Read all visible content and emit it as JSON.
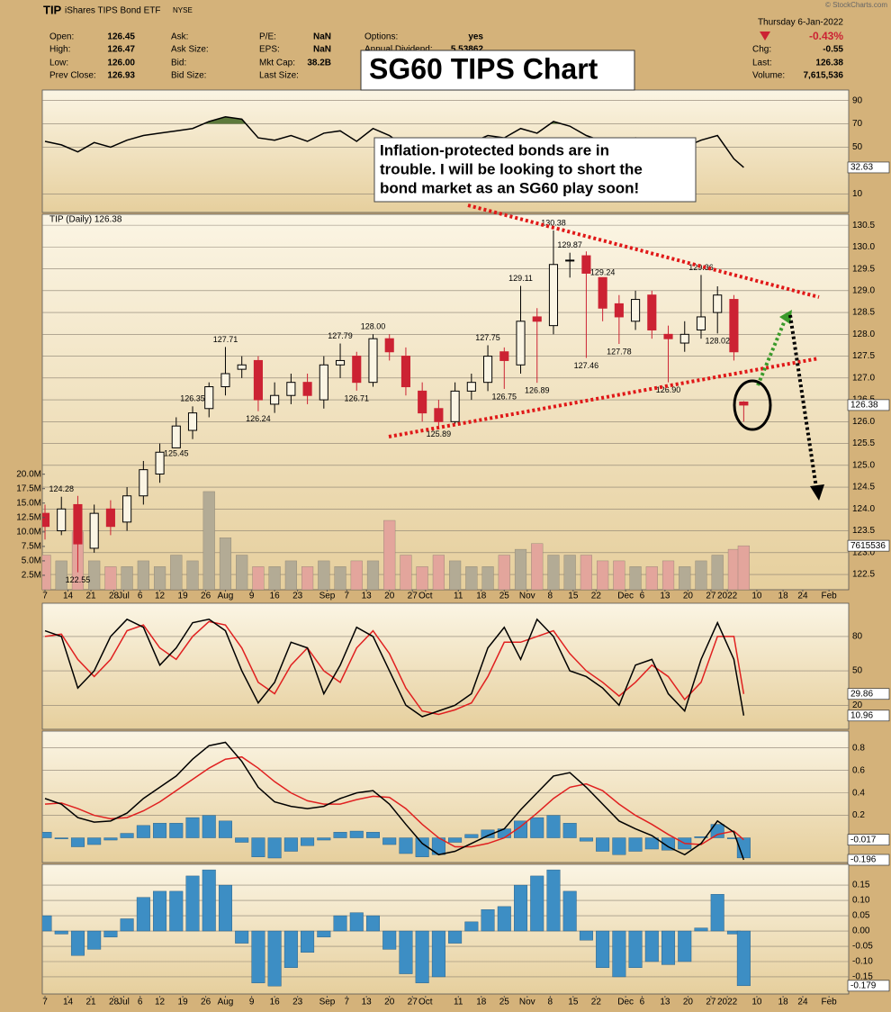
{
  "header": {
    "symbol": "TIP",
    "name": "iShares TIPS Bond ETF",
    "exchange": "NYSE",
    "watermark": "© StockCharts.com",
    "date": "Thursday  6-Jan-2022",
    "change_pct": "-0.43%",
    "columns": [
      [
        {
          "label": "Open:",
          "value": "126.45"
        },
        {
          "label": "High:",
          "value": "126.47"
        },
        {
          "label": "Low:",
          "value": "126.00"
        },
        {
          "label": "Prev Close:",
          "value": "126.93"
        }
      ],
      [
        {
          "label": "Ask:"
        },
        {
          "label": "Ask Size:"
        },
        {
          "label": "Bid:"
        },
        {
          "label": "Bid Size:"
        }
      ],
      [
        {
          "label": "P/E:",
          "value": "NaN"
        },
        {
          "label": "EPS:",
          "value": "NaN"
        },
        {
          "label": "Mkt Cap:",
          "value": "38.2B"
        },
        {
          "label": "Last Size:"
        }
      ],
      [
        {
          "label": "Options:",
          "value": "yes"
        },
        {
          "label": "Annual Dividend:",
          "value": "5.53862"
        }
      ]
    ],
    "right_fields": [
      {
        "label": "Chg:",
        "value": "-0.55"
      },
      {
        "label": "Last:",
        "value": "126.38"
      },
      {
        "label": "Volume:",
        "value": "7,615,536"
      }
    ],
    "title": "SG60 TIPS Chart",
    "note": [
      " Inflation-protected bonds are in",
      "trouble.  I will be looking to short the",
      "bond market as an SG60 play soon!"
    ]
  },
  "chart_data": {
    "type": "candlestick",
    "x": [
      0,
      5,
      10,
      15,
      20,
      25,
      30,
      35,
      40,
      45,
      50,
      55,
      60,
      65,
      70,
      75,
      80,
      85,
      90,
      95,
      100,
      105,
      110,
      115,
      120,
      125,
      130,
      135,
      140,
      145,
      150,
      155,
      160,
      165,
      170,
      175,
      180,
      185,
      190,
      195,
      200,
      205,
      210,
      213
    ],
    "xlim": [
      0,
      245
    ],
    "xticks": [
      {
        "value": 0,
        "label": "7"
      },
      {
        "value": 7,
        "label": "14"
      },
      {
        "value": 14,
        "label": "21"
      },
      {
        "value": 21,
        "label": "28"
      },
      {
        "value": 24,
        "label": "Jul"
      },
      {
        "value": 29,
        "label": "6"
      },
      {
        "value": 35,
        "label": "12"
      },
      {
        "value": 42,
        "label": "19"
      },
      {
        "value": 49,
        "label": "26"
      },
      {
        "value": 55,
        "label": "Aug"
      },
      {
        "value": 63,
        "label": "9"
      },
      {
        "value": 70,
        "label": "16"
      },
      {
        "value": 77,
        "label": "23"
      },
      {
        "value": 86,
        "label": "Sep"
      },
      {
        "value": 92,
        "label": "7"
      },
      {
        "value": 98,
        "label": "13"
      },
      {
        "value": 105,
        "label": "20"
      },
      {
        "value": 112,
        "label": "27"
      },
      {
        "value": 116,
        "label": "Oct"
      },
      {
        "value": 126,
        "label": "11"
      },
      {
        "value": 133,
        "label": "18"
      },
      {
        "value": 140,
        "label": "25"
      },
      {
        "value": 147,
        "label": "Nov"
      },
      {
        "value": 154,
        "label": "8"
      },
      {
        "value": 161,
        "label": "15"
      },
      {
        "value": 168,
        "label": "22"
      },
      {
        "value": 177,
        "label": "Dec"
      },
      {
        "value": 182,
        "label": "6"
      },
      {
        "value": 189,
        "label": "13"
      },
      {
        "value": 196,
        "label": "20"
      },
      {
        "value": 203,
        "label": "27"
      },
      {
        "value": 208,
        "label": "2022"
      },
      {
        "value": 217,
        "label": "10"
      },
      {
        "value": 225,
        "label": "18"
      },
      {
        "value": 231,
        "label": "24"
      },
      {
        "value": 239,
        "label": "Feb"
      }
    ],
    "panels": [
      {
        "type": "line",
        "ylim": [
          -6,
          99
        ],
        "yticks": [
          90,
          70,
          50,
          10
        ],
        "fill_above": 70,
        "fill_color": "#5d7a3c",
        "series": [
          {
            "color": "#000000",
            "values": [
              55,
              52,
              46,
              54,
              50,
              56,
              60,
              62,
              64,
              66,
              72,
              76,
              74,
              58,
              56,
              60,
              55,
              62,
              64,
              55,
              66,
              60,
              50,
              45,
              44,
              52,
              54,
              60,
              58,
              66,
              62,
              72,
              68,
              60,
              55,
              52,
              58,
              50,
              47,
              50,
              56,
              60,
              40,
              32.63
            ]
          }
        ]
      },
      {
        "type": "candlestick",
        "label": "TIP (Daily) 126.38",
        "up_color": "#000000",
        "down_color": "#cc2233",
        "ylim": [
          122.15,
          130.75
        ],
        "yticks": [
          130.5,
          {
            "value": 130,
            "label": "130.0"
          },
          129.5,
          {
            "value": 129,
            "label": "129.0"
          },
          128.5,
          {
            "value": 128,
            "label": "128.0"
          },
          127.5,
          {
            "value": 127,
            "label": "127.0"
          },
          126.5,
          {
            "value": 126,
            "label": "126.0"
          },
          125.5,
          {
            "value": 125,
            "label": "125.0"
          },
          124.5,
          {
            "value": 124,
            "label": "124.0"
          },
          123.5,
          {
            "value": 123,
            "label": "123.0"
          },
          122.5
        ],
        "open": [
          123.9,
          123.5,
          124.1,
          123.1,
          124.0,
          123.7,
          124.3,
          124.8,
          125.4,
          125.8,
          126.3,
          126.8,
          127.2,
          127.4,
          126.4,
          126.6,
          126.9,
          126.5,
          127.3,
          127.5,
          126.9,
          127.9,
          127.5,
          126.7,
          126.3,
          126.0,
          126.7,
          126.9,
          127.6,
          127.3,
          128.4,
          128.2,
          129.7,
          129.8,
          129.3,
          128.7,
          128.3,
          128.9,
          128.0,
          127.8,
          128.1,
          128.5,
          128.8,
          126.45
        ],
        "high": [
          124.1,
          124.28,
          124.3,
          124.1,
          124.2,
          124.5,
          125.1,
          125.5,
          126.1,
          126.35,
          126.9,
          127.71,
          127.5,
          127.5,
          126.9,
          127.1,
          127.1,
          127.5,
          127.79,
          127.6,
          128.0,
          128.0,
          127.7,
          126.9,
          126.5,
          126.9,
          127.1,
          127.75,
          127.7,
          129.11,
          128.6,
          130.38,
          129.87,
          129.9,
          129.24,
          128.9,
          129.0,
          129.0,
          128.2,
          128.3,
          129.36,
          129.1,
          128.9,
          126.47
        ],
        "low": [
          123.3,
          123.4,
          122.55,
          123.0,
          123.4,
          123.5,
          124.1,
          124.6,
          125.45,
          125.6,
          126.1,
          126.6,
          127.0,
          126.24,
          126.2,
          126.4,
          126.4,
          126.3,
          127.0,
          126.71,
          126.8,
          127.4,
          126.6,
          126.0,
          125.89,
          125.95,
          126.5,
          126.7,
          126.75,
          127.1,
          126.89,
          128.0,
          129.3,
          127.46,
          128.3,
          127.78,
          128.1,
          127.9,
          126.9,
          127.6,
          127.9,
          128.02,
          127.4,
          126.0
        ],
        "close": [
          123.6,
          124.0,
          123.2,
          123.9,
          123.6,
          124.3,
          124.9,
          125.3,
          125.9,
          126.2,
          126.8,
          127.1,
          127.3,
          126.5,
          126.6,
          126.9,
          126.6,
          127.3,
          127.4,
          126.9,
          127.9,
          127.6,
          126.8,
          126.2,
          126.0,
          126.7,
          126.9,
          127.5,
          127.4,
          128.3,
          128.3,
          129.6,
          129.7,
          129.4,
          128.6,
          128.4,
          128.8,
          128.1,
          127.9,
          128.0,
          128.4,
          128.9,
          127.6,
          126.38
        ],
        "volume": {
          "colors": [
            "#b3ab95",
            "#e3a59c"
          ],
          "values": [
            6000000,
            5000000,
            10000000,
            5000000,
            4000000,
            4000000,
            5000000,
            4000000,
            6000000,
            5000000,
            17000000,
            9000000,
            6000000,
            4000000,
            4000000,
            5000000,
            4000000,
            5000000,
            4000000,
            5000000,
            5000000,
            12000000,
            6000000,
            4000000,
            6000000,
            5000000,
            4000000,
            4000000,
            6000000,
            7000000,
            8000000,
            6000000,
            6000000,
            6000000,
            5000000,
            5000000,
            4000000,
            4000000,
            5000000,
            4000000,
            5000000,
            6000000,
            7000000,
            7615536
          ]
        },
        "y2lim": [
          0,
          65000000
        ],
        "y2ticks": [
          {
            "value": 20000000,
            "label": "20.0M"
          },
          {
            "value": 17500000,
            "label": "17.5M"
          },
          {
            "value": 15000000,
            "label": "15.0M"
          },
          {
            "value": 12500000,
            "label": "12.5M"
          },
          {
            "value": 10000000,
            "label": "10.0M"
          },
          {
            "value": 7500000,
            "label": "7.5M"
          },
          {
            "value": 5000000,
            "label": "5.0M"
          },
          {
            "value": 2500000,
            "label": "2.5M"
          }
        ],
        "annotations": [
          {
            "x": 5,
            "value": 124.28,
            "label": "124.28"
          },
          {
            "x": 10,
            "value": 122.55,
            "label": "122.55"
          },
          {
            "x": 45,
            "value": 126.35,
            "label": "126.35"
          },
          {
            "x": 40,
            "value": 125.45,
            "label": "125.45"
          },
          {
            "x": 55,
            "value": 127.71,
            "label": "127.71"
          },
          {
            "x": 65,
            "value": 126.24,
            "label": "126.24"
          },
          {
            "x": 90,
            "value": 127.79,
            "label": "127.79"
          },
          {
            "x": 95,
            "value": 126.71,
            "label": "126.71"
          },
          {
            "x": 100,
            "value": 128,
            "label": "128.00"
          },
          {
            "x": 120,
            "value": 125.89,
            "label": "125.89"
          },
          {
            "x": 135,
            "value": 127.75,
            "label": "127.75"
          },
          {
            "x": 140,
            "value": 126.75,
            "label": "126.75"
          },
          {
            "x": 145,
            "value": 129.11,
            "label": "129.11"
          },
          {
            "x": 150,
            "value": 126.89,
            "label": "126.89"
          },
          {
            "x": 155,
            "value": 130.38,
            "label": "130.38"
          },
          {
            "x": 160,
            "value": 129.87,
            "label": "129.87"
          },
          {
            "x": 170,
            "value": 129.24,
            "label": "129.24"
          },
          {
            "x": 165,
            "value": 127.46,
            "label": "127.46"
          },
          {
            "x": 175,
            "value": 127.78,
            "label": "127.78"
          },
          {
            "x": 200,
            "value": 129.36,
            "label": "129.36"
          },
          {
            "x": 205,
            "value": 128.02,
            "label": "128.02"
          },
          {
            "x": 190,
            "value": 126.9,
            "label": "126.90"
          }
        ]
      },
      {
        "type": "line",
        "ylim": [
          -1,
          109
        ],
        "yticks": [
          80,
          50,
          20
        ],
        "series": [
          {
            "color": "#000000",
            "values": [
              85,
              80,
              35,
              50,
              80,
              95,
              88,
              55,
              70,
              92,
              95,
              85,
              50,
              22,
              40,
              75,
              70,
              30,
              55,
              88,
              80,
              50,
              20,
              10,
              15,
              20,
              30,
              70,
              88,
              60,
              95,
              80,
              50,
              45,
              35,
              20,
              55,
              60,
              30,
              15,
              60,
              92,
              60,
              10.96
            ]
          },
          {
            "color": "#e02020",
            "values": [
              80,
              82,
              60,
              45,
              60,
              85,
              90,
              70,
              60,
              80,
              93,
              90,
              70,
              40,
              30,
              55,
              70,
              50,
              40,
              70,
              85,
              65,
              35,
              15,
              12,
              16,
              22,
              45,
              75,
              75,
              80,
              85,
              65,
              50,
              40,
              28,
              40,
              55,
              45,
              25,
              40,
              80,
              80,
              29.86
            ]
          }
        ]
      },
      {
        "type": "macd",
        "ylim": [
          -0.22,
          0.95
        ],
        "yticks": [
          0.8,
          0.6,
          0.4,
          0.2
        ],
        "bar_color": "#3d8ec4",
        "series": [
          {
            "color": "#000000",
            "values": [
              0.35,
              0.3,
              0.18,
              0.14,
              0.15,
              0.22,
              0.35,
              0.45,
              0.55,
              0.7,
              0.82,
              0.85,
              0.68,
              0.45,
              0.32,
              0.28,
              0.26,
              0.28,
              0.35,
              0.4,
              0.42,
              0.3,
              0.12,
              -0.05,
              -0.15,
              -0.12,
              -0.05,
              0.02,
              0.08,
              0.25,
              0.4,
              0.55,
              0.58,
              0.45,
              0.3,
              0.15,
              0.08,
              0.02,
              -0.08,
              -0.15,
              -0.05,
              0.15,
              0.05,
              -0.196
            ]
          },
          {
            "color": "#e02020",
            "values": [
              0.3,
              0.31,
              0.26,
              0.2,
              0.17,
              0.18,
              0.24,
              0.32,
              0.42,
              0.52,
              0.62,
              0.7,
              0.72,
              0.62,
              0.5,
              0.4,
              0.33,
              0.3,
              0.3,
              0.34,
              0.37,
              0.36,
              0.26,
              0.12,
              0,
              -0.08,
              -0.08,
              -0.05,
              0,
              0.1,
              0.22,
              0.35,
              0.45,
              0.48,
              0.42,
              0.3,
              0.2,
              0.12,
              0.03,
              -0.05,
              -0.06,
              0.03,
              0.06,
              -0.017
            ]
          }
        ]
      },
      {
        "type": "bar",
        "ylim": [
          -0.206,
          0.218
        ],
        "yticks": [
          0.15,
          {
            "value": 0.1,
            "label": "0.10"
          },
          0.05,
          {
            "value": 0,
            "label": "0.00"
          },
          -0.05,
          {
            "value": -0.1,
            "label": "-0.10"
          },
          -0.15
        ],
        "series": [
          {
            "color": "#3d8ec4",
            "values": [
              0.05,
              -0.01,
              -0.08,
              -0.06,
              -0.02,
              0.04,
              0.11,
              0.13,
              0.13,
              0.18,
              0.2,
              0.15,
              -0.04,
              -0.17,
              -0.18,
              -0.12,
              -0.07,
              -0.02,
              0.05,
              0.06,
              0.05,
              -0.06,
              -0.14,
              -0.17,
              -0.15,
              -0.04,
              0.03,
              0.07,
              0.08,
              0.15,
              0.18,
              0.2,
              0.13,
              -0.03,
              -0.12,
              -0.15,
              -0.12,
              -0.1,
              -0.11,
              -0.1,
              0.01,
              0.12,
              -0.01,
              -0.179
            ]
          }
        ]
      }
    ]
  }
}
